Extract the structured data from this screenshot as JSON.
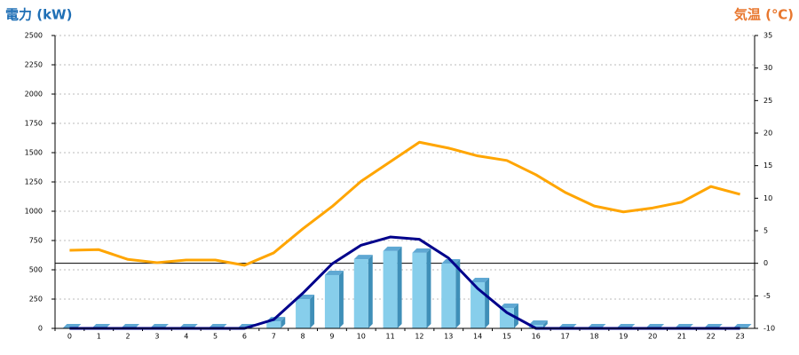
{
  "chart_data": {
    "type": "bar-line",
    "y_title": "電力 (kW)",
    "y2_title": "気温 (℃)",
    "categories": [
      "0",
      "1",
      "2",
      "3",
      "4",
      "5",
      "6",
      "7",
      "8",
      "9",
      "10",
      "11",
      "12",
      "13",
      "14",
      "15",
      "16",
      "17",
      "18",
      "19",
      "20",
      "21",
      "22",
      "23"
    ],
    "series": [
      {
        "kind": "bar",
        "color": "#87ceeb",
        "values": [
          0,
          0,
          0,
          0,
          0,
          0,
          0,
          60,
          250,
          455,
          590,
          660,
          645,
          553,
          394,
          174,
          30,
          0,
          0,
          0,
          0,
          0,
          0,
          0
        ]
      },
      {
        "kind": "line",
        "color": "#00008b",
        "values": [
          0,
          0,
          0,
          0,
          0,
          0,
          0,
          75,
          300,
          550,
          710,
          780,
          760,
          600,
          340,
          135,
          0,
          0,
          0,
          0,
          0,
          0,
          0,
          0
        ]
      },
      {
        "kind": "line",
        "axis": "y2",
        "color": "#ffa500",
        "values": [
          2.0,
          2.1,
          0.6,
          0.1,
          0.5,
          0.5,
          -0.3,
          1.6,
          5.3,
          8.7,
          12.6,
          15.6,
          18.6,
          17.7,
          16.5,
          15.8,
          13.6,
          10.9,
          8.8,
          7.9,
          8.5,
          9.4,
          11.8,
          10.6
        ]
      }
    ],
    "ylim": [
      0,
      2500
    ],
    "yticks": [
      0,
      250,
      500,
      750,
      1000,
      1250,
      1500,
      1750,
      2000,
      2250,
      2500
    ],
    "y2lim": [
      -10,
      35
    ],
    "y2ticks": [
      -10,
      -5,
      0,
      5,
      10,
      15,
      20,
      25,
      30,
      35
    ],
    "grid": true
  }
}
